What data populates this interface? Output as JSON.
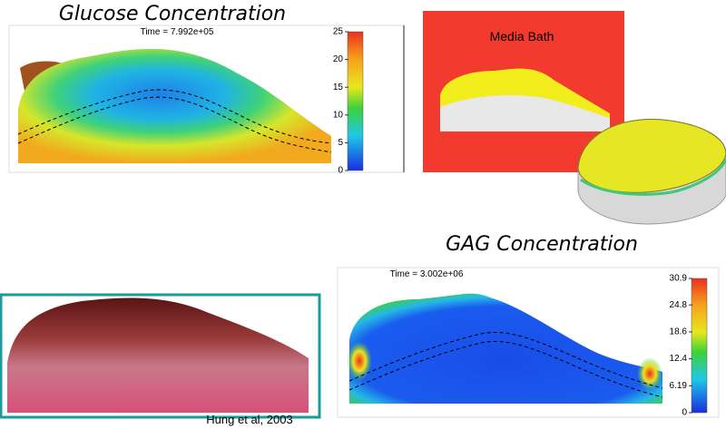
{
  "glucose": {
    "title": "Glucose Concentration",
    "time": "Time = 7.992e+05",
    "colorbar_lim": [
      0,
      25
    ],
    "colorbar_ticks": [
      25,
      20,
      15,
      10,
      5,
      0
    ]
  },
  "media": {
    "label": "Media Bath"
  },
  "gag": {
    "title": "GAG Concentration",
    "time": "Time = 3.002e+06",
    "colorbar_lim": [
      0,
      30.9
    ],
    "colorbar_ticks": [
      30.9,
      24.8,
      18.6,
      12.4,
      6.19,
      0
    ]
  },
  "photo": {
    "caption": "Hung et al, 2003"
  }
}
